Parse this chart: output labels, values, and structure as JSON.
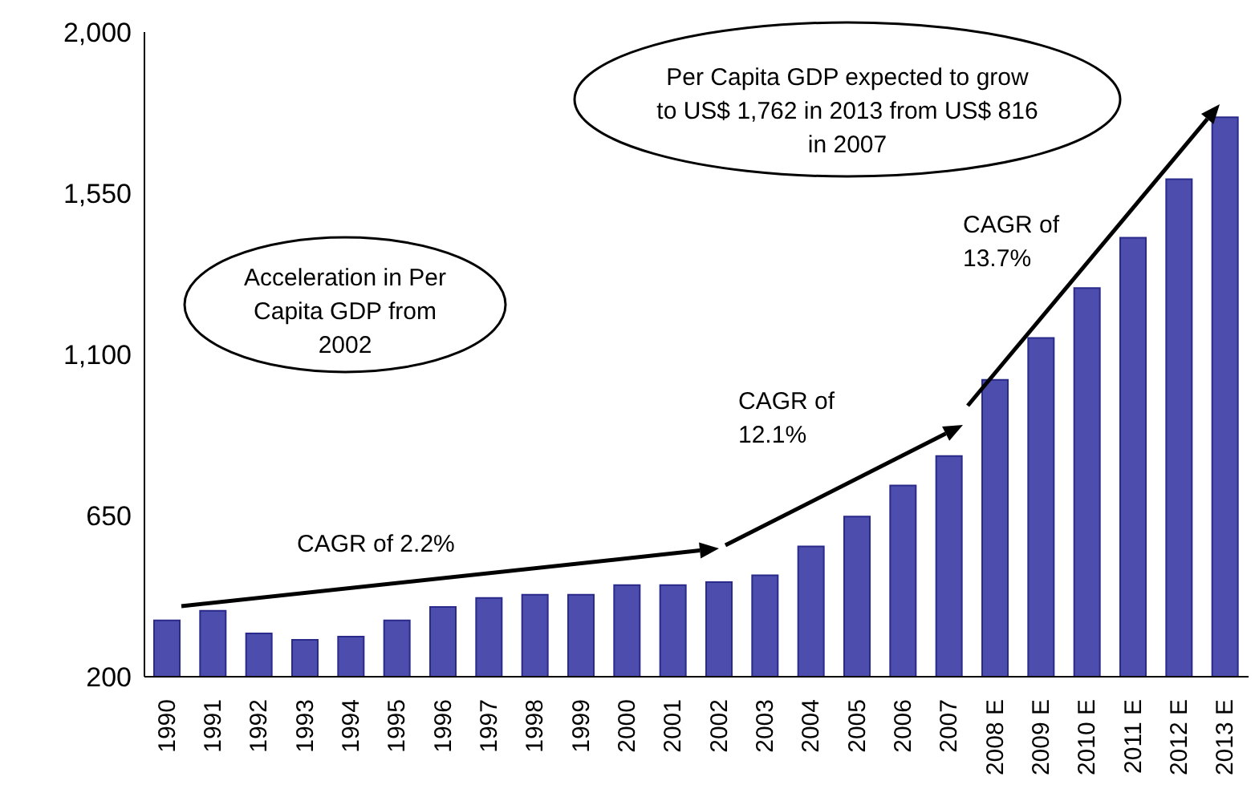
{
  "chart_data": {
    "type": "bar",
    "categories": [
      "1990",
      "1991",
      "1992",
      "1993",
      "1994",
      "1995",
      "1996",
      "1997",
      "1998",
      "1999",
      "2000",
      "2001",
      "2002",
      "2003",
      "2004",
      "2005",
      "2006",
      "2007",
      "2008 E",
      "2009 E",
      "2010 E",
      "2011 E",
      "2012 E",
      "2013 E"
    ],
    "values": [
      357,
      384,
      321,
      303,
      312,
      357,
      395,
      420,
      429,
      429,
      456,
      456,
      464,
      483,
      564,
      647,
      734,
      816,
      1029,
      1146,
      1285,
      1426,
      1589,
      1762
    ],
    "color": "#4d4dae",
    "ylim": [
      200,
      2000
    ],
    "yticks": [
      200,
      650,
      {
        "value": 1100,
        "label": "1,100"
      },
      {
        "value": 1550,
        "label": "1,550"
      },
      {
        "value": 2000,
        "label": "2,000"
      }
    ],
    "grid": false,
    "annotations": [
      "Per Capita GDP expected to grow to US$ 1,762 in 2013 from US$ 816 in 2007",
      "Acceleration in Per Capita GDP from 2002",
      "CAGR of 2.2%",
      "CAGR of 12.1%",
      "CAGR of 13.7%"
    ]
  }
}
